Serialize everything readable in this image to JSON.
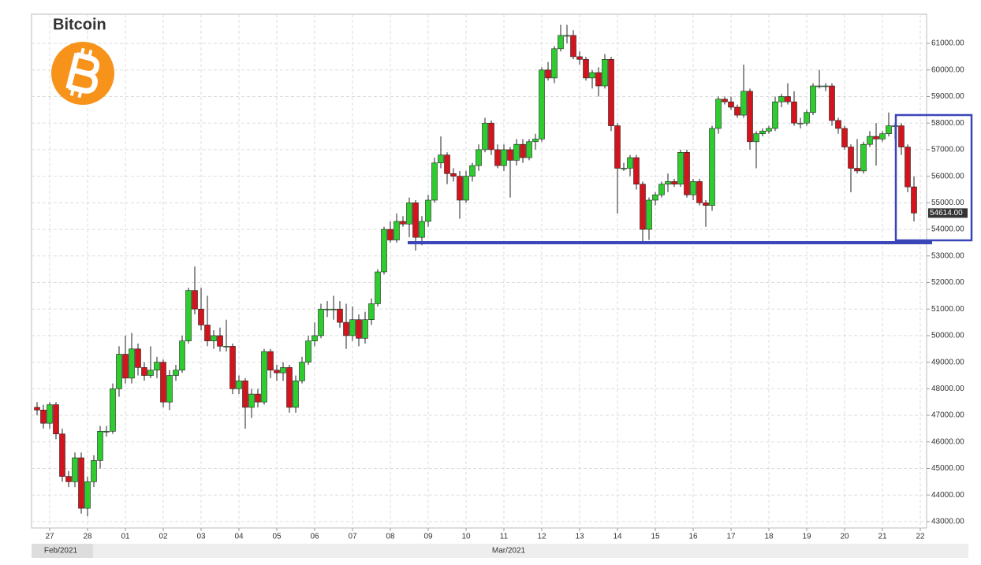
{
  "chart_data": {
    "type": "candlestick",
    "title": "Bitcoin",
    "ohlc": [
      [
        47300,
        47500,
        47000,
        47200
      ],
      [
        47200,
        47400,
        46500,
        46700
      ],
      [
        46700,
        47500,
        46500,
        47400
      ],
      [
        47400,
        47500,
        46100,
        46300
      ],
      [
        46300,
        46500,
        44500,
        44700
      ],
      [
        44700,
        44900,
        44300,
        44500
      ],
      [
        44500,
        45600,
        44300,
        45400
      ],
      [
        45400,
        45600,
        43300,
        43500
      ],
      [
        43500,
        44700,
        43200,
        44500
      ],
      [
        44500,
        45500,
        44300,
        45300
      ],
      [
        45300,
        46600,
        45000,
        46400
      ],
      [
        46400,
        46600,
        46200,
        46400
      ],
      [
        46400,
        48200,
        46300,
        48000
      ],
      [
        48000,
        49600,
        47700,
        49300
      ],
      [
        49300,
        50000,
        48200,
        48400
      ],
      [
        48400,
        50100,
        48200,
        49500
      ],
      [
        49500,
        49700,
        48500,
        48800
      ],
      [
        48800,
        49000,
        48300,
        48500
      ],
      [
        48500,
        49600,
        48400,
        48700
      ],
      [
        48700,
        49200,
        48400,
        49000
      ],
      [
        49000,
        49100,
        47300,
        47500
      ],
      [
        47500,
        48700,
        47200,
        48500
      ],
      [
        48500,
        48900,
        48300,
        48700
      ],
      [
        48700,
        50000,
        48600,
        49800
      ],
      [
        49800,
        51800,
        49700,
        51700
      ],
      [
        51700,
        52600,
        50800,
        51000
      ],
      [
        51000,
        51800,
        50200,
        50400
      ],
      [
        50400,
        51500,
        49600,
        49800
      ],
      [
        49800,
        50200,
        49500,
        50000
      ],
      [
        50000,
        50300,
        49400,
        49600
      ],
      [
        49600,
        50600,
        49400,
        49600
      ],
      [
        49600,
        49700,
        47800,
        48000
      ],
      [
        48000,
        48500,
        47800,
        48300
      ],
      [
        48300,
        48400,
        46500,
        47300
      ],
      [
        47300,
        48000,
        46900,
        47800
      ],
      [
        47800,
        48000,
        47300,
        47500
      ],
      [
        47500,
        49500,
        47400,
        49400
      ],
      [
        49400,
        49500,
        48400,
        48700
      ],
      [
        48700,
        48900,
        48300,
        48600
      ],
      [
        48600,
        49000,
        48300,
        48800
      ],
      [
        48800,
        48900,
        47100,
        47300
      ],
      [
        47300,
        48500,
        47100,
        48300
      ],
      [
        48300,
        49200,
        48200,
        49000
      ],
      [
        49000,
        50000,
        48900,
        49800
      ],
      [
        49800,
        50500,
        49600,
        50000
      ],
      [
        50000,
        51200,
        49900,
        51000
      ],
      [
        51000,
        51300,
        50700,
        51000
      ],
      [
        51000,
        51500,
        50600,
        51000
      ],
      [
        51000,
        51300,
        50300,
        50500
      ],
      [
        50500,
        51200,
        49500,
        50000
      ],
      [
        50000,
        51100,
        49800,
        50600
      ],
      [
        50600,
        50800,
        49600,
        49900
      ],
      [
        49900,
        50900,
        49700,
        50600
      ],
      [
        50600,
        51400,
        50400,
        51200
      ],
      [
        51200,
        52500,
        51100,
        52400
      ],
      [
        52400,
        54100,
        52300,
        54000
      ],
      [
        54000,
        54300,
        53500,
        53600
      ],
      [
        53600,
        54600,
        53500,
        54300
      ],
      [
        54300,
        54500,
        54100,
        54200
      ],
      [
        54200,
        55200,
        53700,
        55000
      ],
      [
        55000,
        55100,
        53200,
        53700
      ],
      [
        53700,
        54500,
        53400,
        54300
      ],
      [
        54300,
        55300,
        54100,
        55100
      ],
      [
        55100,
        56700,
        55000,
        56500
      ],
      [
        56500,
        57500,
        56300,
        56800
      ],
      [
        56800,
        56900,
        55700,
        56100
      ],
      [
        56100,
        56300,
        55800,
        56000
      ],
      [
        56000,
        56200,
        54400,
        55100
      ],
      [
        55100,
        56200,
        55000,
        56000
      ],
      [
        56000,
        56500,
        55800,
        56400
      ],
      [
        56400,
        57200,
        56200,
        57000
      ],
      [
        57000,
        58200,
        56900,
        58000
      ],
      [
        58000,
        58100,
        56800,
        57000
      ],
      [
        57000,
        57200,
        56300,
        56400
      ],
      [
        56400,
        57200,
        56200,
        57000
      ],
      [
        57000,
        57100,
        55200,
        56600
      ],
      [
        56600,
        57400,
        56400,
        57200
      ],
      [
        57200,
        57400,
        56500,
        56700
      ],
      [
        56700,
        57400,
        56600,
        57300
      ],
      [
        57300,
        57600,
        57000,
        57400
      ],
      [
        57400,
        60100,
        57300,
        60000
      ],
      [
        60000,
        60300,
        59600,
        59700
      ],
      [
        59700,
        60900,
        59500,
        60800
      ],
      [
        60800,
        61700,
        60700,
        61300
      ],
      [
        61300,
        61700,
        61000,
        61300
      ],
      [
        61300,
        61500,
        60400,
        60500
      ],
      [
        60500,
        60700,
        60200,
        60400
      ],
      [
        60400,
        60500,
        59600,
        59700
      ],
      [
        59700,
        60000,
        59300,
        59900
      ],
      [
        59900,
        60100,
        59000,
        59400
      ],
      [
        59400,
        60600,
        59300,
        60400
      ],
      [
        60400,
        60500,
        57700,
        57900
      ],
      [
        57900,
        58000,
        54600,
        56300
      ],
      [
        56300,
        56500,
        56200,
        56300
      ],
      [
        56300,
        56800,
        56000,
        56700
      ],
      [
        56700,
        56800,
        55500,
        55700
      ],
      [
        55700,
        55800,
        53500,
        54000
      ],
      [
        54000,
        55200,
        53600,
        55100
      ],
      [
        55100,
        55400,
        54900,
        55300
      ],
      [
        55300,
        55800,
        55200,
        55700
      ],
      [
        55700,
        56100,
        55400,
        55800
      ],
      [
        55800,
        55900,
        55600,
        55700
      ],
      [
        55700,
        57000,
        55600,
        56900
      ],
      [
        56900,
        57000,
        55200,
        55300
      ],
      [
        55300,
        55900,
        55100,
        55800
      ],
      [
        55800,
        55900,
        54900,
        55000
      ],
      [
        55000,
        55100,
        54100,
        54900
      ],
      [
        54900,
        57900,
        54700,
        57800
      ],
      [
        57800,
        59000,
        57600,
        58900
      ],
      [
        58900,
        59000,
        58700,
        58800
      ],
      [
        58800,
        59000,
        58500,
        58600
      ],
      [
        58600,
        58700,
        58200,
        58300
      ],
      [
        58300,
        60200,
        58200,
        59200
      ],
      [
        59200,
        59300,
        57000,
        57300
      ],
      [
        57300,
        57700,
        56300,
        57600
      ],
      [
        57600,
        57800,
        57500,
        57700
      ],
      [
        57700,
        57900,
        57600,
        57800
      ],
      [
        57800,
        59000,
        57700,
        58800
      ],
      [
        58800,
        59100,
        58600,
        59000
      ],
      [
        59000,
        59500,
        58700,
        58800
      ],
      [
        58800,
        59200,
        57900,
        58000
      ],
      [
        58000,
        58200,
        57800,
        58000
      ],
      [
        58000,
        58500,
        57900,
        58400
      ],
      [
        58400,
        59500,
        58300,
        59400
      ],
      [
        59400,
        60000,
        59300,
        59400
      ],
      [
        59400,
        59500,
        59200,
        59400
      ],
      [
        59400,
        59500,
        57900,
        58100
      ],
      [
        58100,
        58200,
        57600,
        57800
      ],
      [
        57800,
        57900,
        57000,
        57100
      ],
      [
        57100,
        57200,
        55400,
        56300
      ],
      [
        56300,
        57400,
        56100,
        56200
      ],
      [
        56200,
        57300,
        56100,
        57200
      ],
      [
        57200,
        57700,
        57100,
        57500
      ],
      [
        57500,
        58000,
        56400,
        57400
      ],
      [
        57400,
        57700,
        57300,
        57600
      ],
      [
        57600,
        58400,
        57500,
        57900
      ],
      [
        57900,
        58000,
        57400,
        57900
      ],
      [
        57900,
        58000,
        56800,
        57100
      ],
      [
        57100,
        57200,
        55400,
        55600
      ],
      [
        55600,
        56000,
        54300,
        54614
      ]
    ],
    "up_color": "#2ecc2e",
    "down_color": "#d3141c",
    "last_label": "54614.00",
    "ylim": [
      42760,
      62100
    ],
    "yticks": [
      {
        "value": 43000,
        "label": "43000.00"
      },
      {
        "value": 44000,
        "label": "44000.00"
      },
      {
        "value": 45000,
        "label": "45000.00"
      },
      {
        "value": 46000,
        "label": "46000.00"
      },
      {
        "value": 47000,
        "label": "47000.00"
      },
      {
        "value": 48000,
        "label": "48000.00"
      },
      {
        "value": 49000,
        "label": "49000.00"
      },
      {
        "value": 50000,
        "label": "50000.00"
      },
      {
        "value": 51000,
        "label": "51000.00"
      },
      {
        "value": 52000,
        "label": "52000.00"
      },
      {
        "value": 53000,
        "label": "53000.00"
      },
      {
        "value": 54000,
        "label": "54000.00"
      },
      {
        "value": 55000,
        "label": "55000.00"
      },
      {
        "value": 56000,
        "label": "56000.00"
      },
      {
        "value": 57000,
        "label": "57000.00"
      },
      {
        "value": 58000,
        "label": "58000.00"
      },
      {
        "value": 59000,
        "label": "59000.00"
      },
      {
        "value": 60000,
        "label": "60000.00"
      },
      {
        "value": 61000,
        "label": "61000.00"
      }
    ],
    "xticks": [
      {
        "value": 2,
        "label": "27"
      },
      {
        "value": 8,
        "label": "28"
      },
      {
        "value": 14,
        "label": "01"
      },
      {
        "value": 20,
        "label": "02"
      },
      {
        "value": 26,
        "label": "03"
      },
      {
        "value": 32,
        "label": "04"
      },
      {
        "value": 38,
        "label": "05"
      },
      {
        "value": 44,
        "label": "06"
      },
      {
        "value": 50,
        "label": "07"
      },
      {
        "value": 56,
        "label": "08"
      },
      {
        "value": 62,
        "label": "09"
      },
      {
        "value": 68,
        "label": "10"
      },
      {
        "value": 74,
        "label": "11"
      },
      {
        "value": 80,
        "label": "12"
      },
      {
        "value": 86,
        "label": "13"
      },
      {
        "value": 92,
        "label": "14"
      },
      {
        "value": 98,
        "label": "15"
      },
      {
        "value": 104,
        "label": "16"
      },
      {
        "value": 110,
        "label": "17"
      },
      {
        "value": 116,
        "label": "18"
      },
      {
        "value": 122,
        "label": "19"
      },
      {
        "value": 128,
        "label": "20"
      },
      {
        "value": 134,
        "label": "21"
      },
      {
        "value": 140,
        "label": "22"
      }
    ],
    "months": [
      "Feb/2021",
      "Mar/2021"
    ],
    "grid": true
  }
}
